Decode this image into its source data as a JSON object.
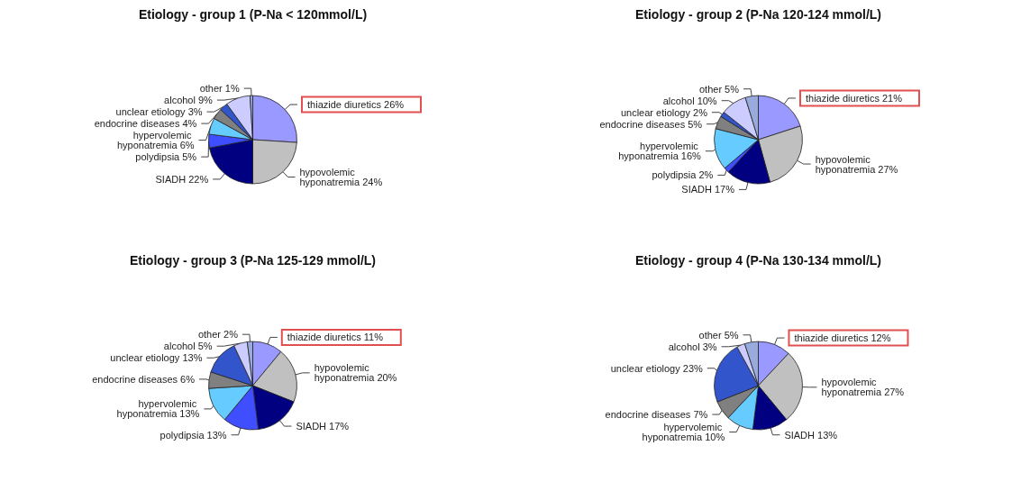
{
  "chart_data": [
    {
      "type": "pie",
      "title": "Etiology - group 1 (P-Na < 120mmol/L)",
      "categories": [
        "thiazide diuretics",
        "hypovolemic hyponatremia",
        "SIADH",
        "polydipsia",
        "hypervolemic hyponatremia",
        "endocrine diseases",
        "unclear etiology",
        "alcohol",
        "other"
      ],
      "values": [
        26,
        24,
        22,
        5,
        6,
        4,
        3,
        9,
        1
      ],
      "value_labels": [
        "26%",
        "24%",
        "22%",
        "5%",
        "6%",
        "4%",
        "3%",
        "9%",
        "1%"
      ],
      "colors": [
        "#9999ff",
        "#c0c0c0",
        "#000080",
        "#3f4fff",
        "#66ccff",
        "#808080",
        "#3355cc",
        "#ccccff",
        "#99aadd"
      ],
      "legend": false
    },
    {
      "type": "pie",
      "title": "Etiology - group 2 (P-Na 120-124 mmol/L)",
      "categories": [
        "thiazide diuretics",
        "hypovolemic hyponatremia",
        "SIADH",
        "polydipsia",
        "hypervolemic hyponatremia",
        "endocrine diseases",
        "unclear etiology",
        "alcohol",
        "other"
      ],
      "values": [
        21,
        27,
        17,
        2,
        16,
        5,
        2,
        10,
        5
      ],
      "value_labels": [
        "21%",
        "27%",
        "17%",
        "2%",
        "16%",
        "5%",
        "2%",
        "10%",
        "5%"
      ],
      "colors": [
        "#9999ff",
        "#c0c0c0",
        "#000080",
        "#3f4fff",
        "#66ccff",
        "#808080",
        "#3355cc",
        "#ccccff",
        "#99aadd"
      ],
      "legend": false
    },
    {
      "type": "pie",
      "title": "Etiology - group 3 (P-Na 125-129 mmol/L)",
      "categories": [
        "thiazide diuretics",
        "hypovolemic hyponatremia",
        "SIADH",
        "polydipsia",
        "hypervolemic hyponatremia",
        "endocrine diseases",
        "unclear etiology",
        "alcohol",
        "other"
      ],
      "values": [
        11,
        20,
        17,
        13,
        13,
        6,
        13,
        5,
        2
      ],
      "value_labels": [
        "11%",
        "20%",
        "17%",
        "13%",
        "13%",
        "6%",
        "13%",
        "5%",
        "2%"
      ],
      "colors": [
        "#9999ff",
        "#c0c0c0",
        "#000080",
        "#3f4fff",
        "#66ccff",
        "#808080",
        "#3355cc",
        "#ccccff",
        "#99aadd"
      ],
      "legend": false
    },
    {
      "type": "pie",
      "title": "Etiology - group 4 (P-Na 130-134 mmol/L)",
      "categories": [
        "thiazide diuretics",
        "hypovolemic hyponatremia",
        "SIADH",
        "hypervolemic hyponatremia",
        "endocrine diseases",
        "unclear etiology",
        "alcohol",
        "other"
      ],
      "values": [
        12,
        27,
        13,
        10,
        7,
        23,
        3,
        5
      ],
      "value_labels": [
        "12%",
        "27%",
        "13%",
        "10%",
        "7%",
        "23%",
        "3%",
        "5%"
      ],
      "colors": [
        "#9999ff",
        "#c0c0c0",
        "#000080",
        "#66ccff",
        "#808080",
        "#3355cc",
        "#ccccff",
        "#99aadd"
      ],
      "legend": false
    }
  ]
}
